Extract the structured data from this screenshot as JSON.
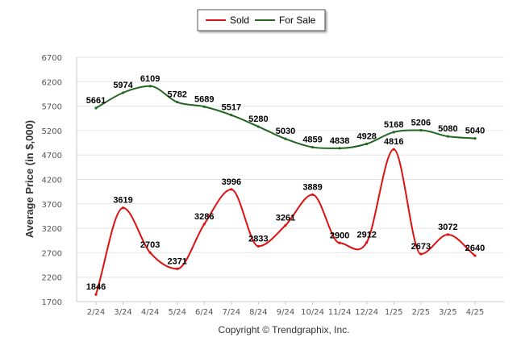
{
  "chart_data": {
    "type": "line",
    "categories": [
      "2/24",
      "3/24",
      "4/24",
      "5/24",
      "6/24",
      "7/24",
      "8/24",
      "9/24",
      "10/24",
      "11/24",
      "12/24",
      "1/25",
      "2/25",
      "3/25",
      "4/25"
    ],
    "series": [
      {
        "name": "Sold",
        "color": "#dd1111",
        "values": [
          1846,
          3619,
          2703,
          2371,
          3286,
          3996,
          2833,
          3261,
          3889,
          2900,
          2912,
          4816,
          2673,
          3072,
          2640
        ]
      },
      {
        "name": "For Sale",
        "color": "#226622",
        "values": [
          5661,
          5974,
          6109,
          5782,
          5689,
          5517,
          5280,
          5030,
          4859,
          4838,
          4928,
          5168,
          5206,
          5080,
          5040
        ]
      }
    ],
    "ylabel": "Average Price (in $,000)",
    "xlabel": "",
    "ylim": [
      1700,
      6700
    ],
    "yticks": [
      1700,
      2200,
      2700,
      3200,
      3700,
      4200,
      4700,
      5200,
      5700,
      6200,
      6700
    ],
    "grid": true,
    "legend_position": "top-center",
    "credit": "Copyright © Trendgraphix, Inc."
  }
}
